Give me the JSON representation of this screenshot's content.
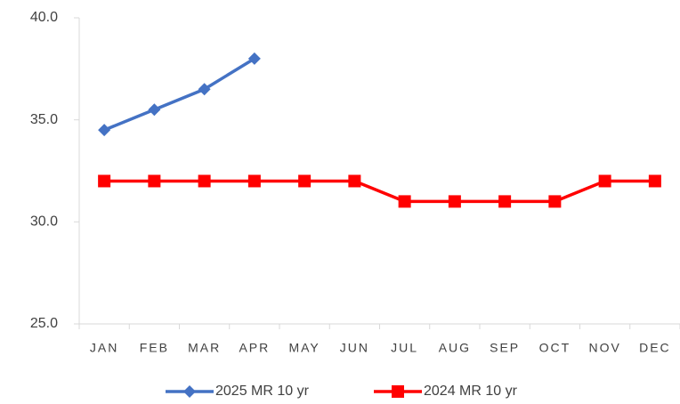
{
  "chart_data": {
    "type": "line",
    "categories": [
      "JAN",
      "FEB",
      "MAR",
      "APR",
      "MAY",
      "JUN",
      "JUL",
      "AUG",
      "SEP",
      "OCT",
      "NOV",
      "DEC"
    ],
    "series": [
      {
        "name": "2025 MR 10 yr",
        "color": "#4472c4",
        "marker": "diamond",
        "values": [
          34.5,
          35.5,
          36.5,
          38,
          null,
          null,
          null,
          null,
          null,
          null,
          null,
          null
        ]
      },
      {
        "name": "2024 MR 10 yr",
        "color": "#ff0000",
        "marker": "square",
        "values": [
          32,
          32,
          32,
          32,
          32,
          32,
          31,
          31,
          31,
          31,
          32,
          32
        ]
      }
    ],
    "ylim": [
      25,
      40
    ],
    "yticks": [
      {
        "value": 25,
        "label": "25.0"
      },
      {
        "value": 30,
        "label": "30.0"
      },
      {
        "value": 35,
        "label": "35.0"
      },
      {
        "value": 40,
        "label": "40.0"
      }
    ],
    "legend": "bottom"
  }
}
